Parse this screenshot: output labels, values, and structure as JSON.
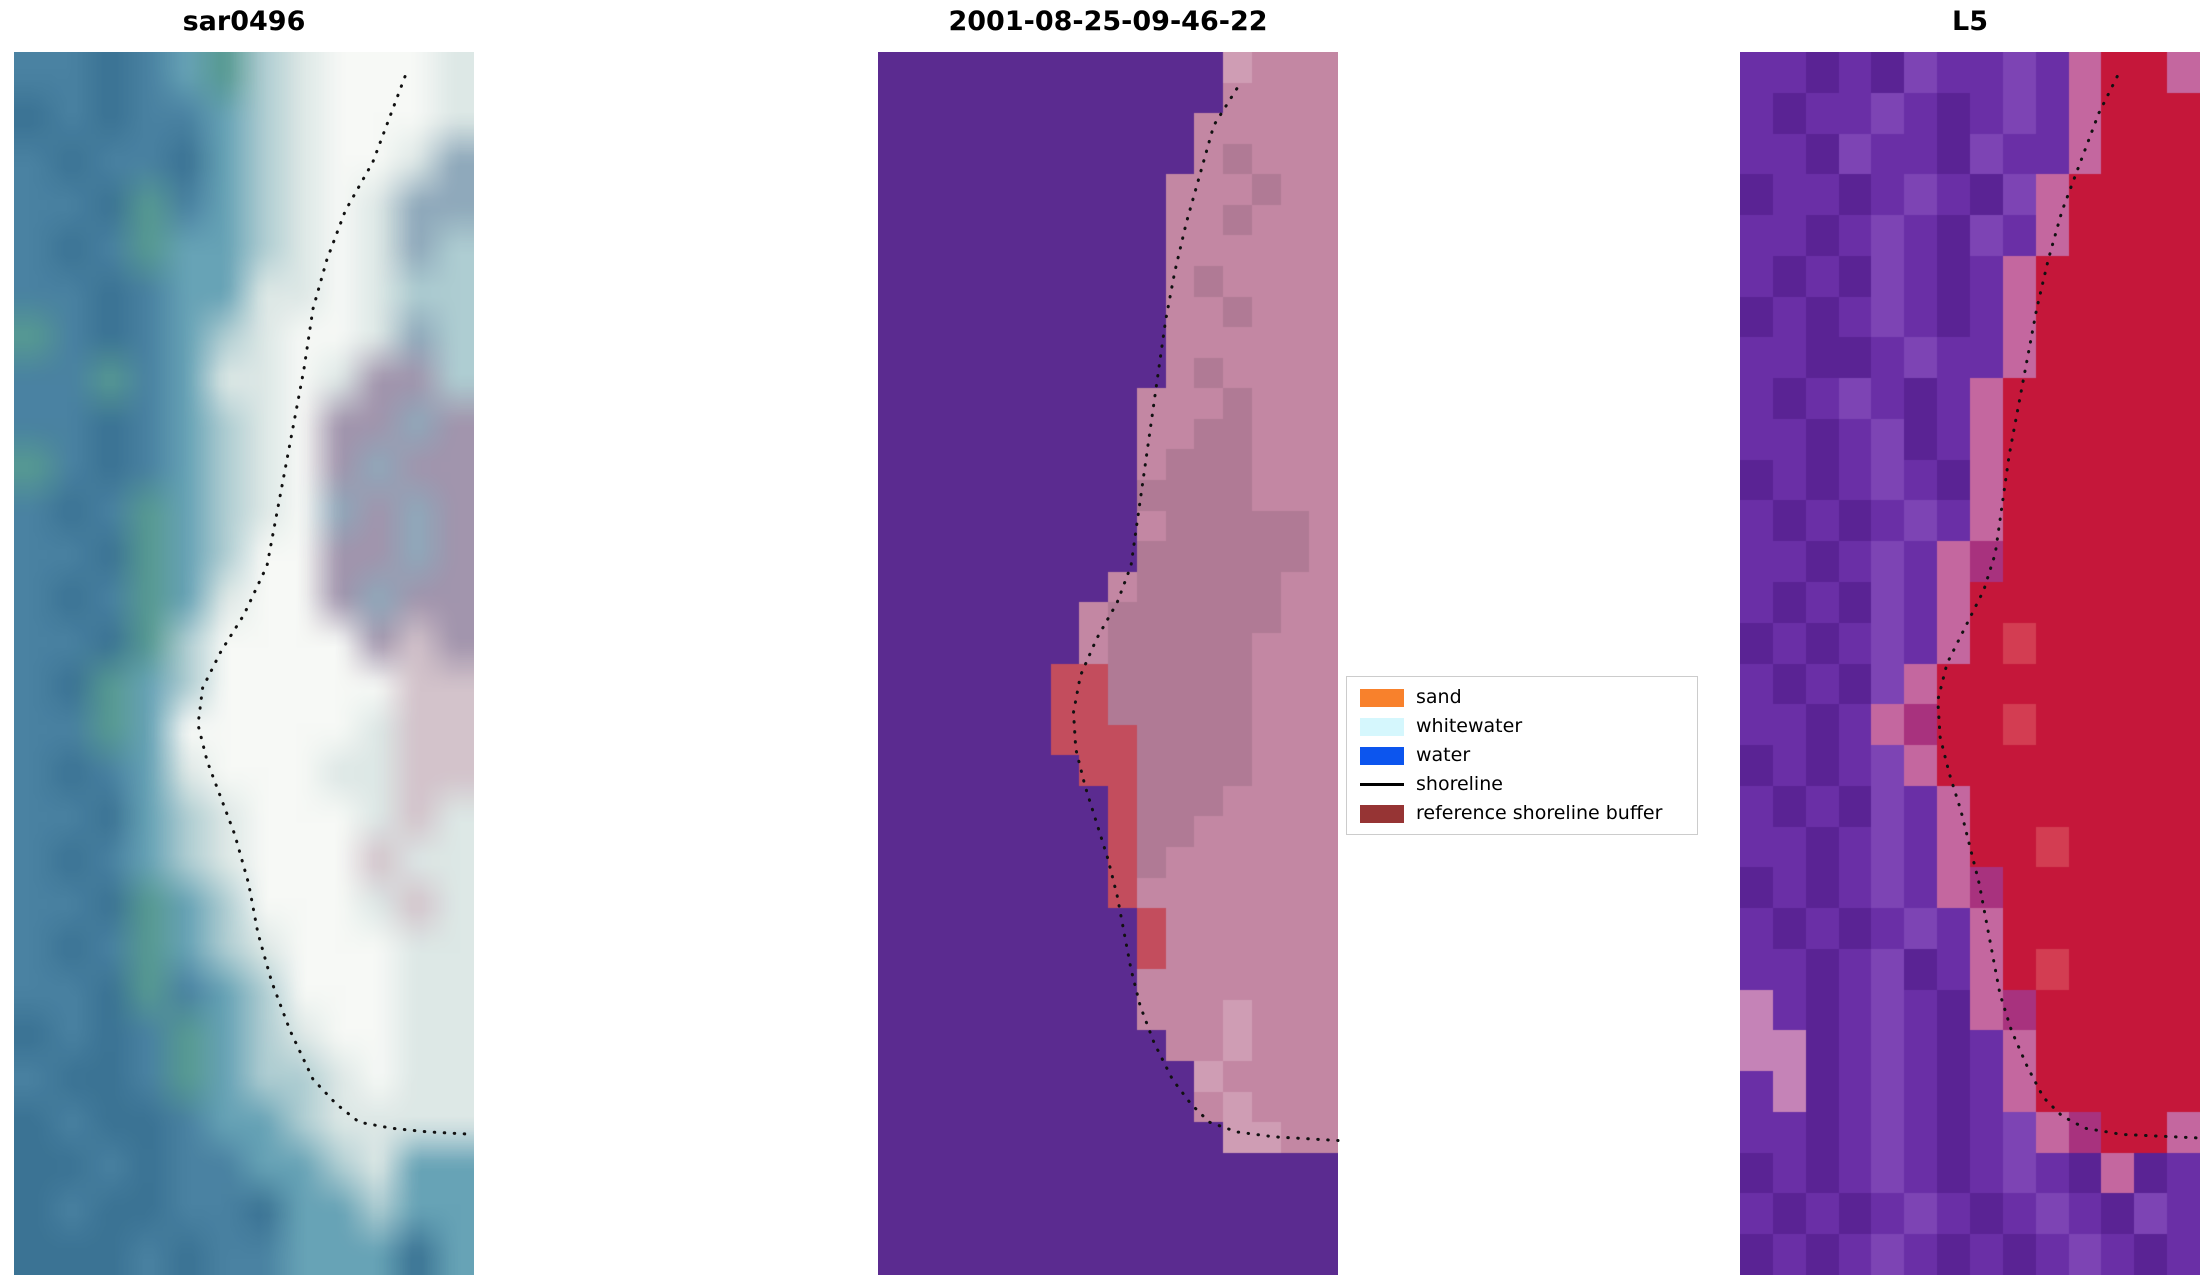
{
  "figure": {
    "background": "#ffffff",
    "shoreline_dot_color": "#111111"
  },
  "panels": [
    {
      "id": "sar",
      "title": "sar0496",
      "render": "smooth",
      "palette": {
        "a": "#4a82a2",
        "b": "#3b7394",
        "c": "#67a3b6",
        "g": "#579a92",
        "v": "#aecdd2",
        "w": "#dde8e6",
        "W": "#f7f9f6",
        "s": "#8fa9bb",
        "m": "#a295ad",
        "r": "#d3c3cb"
      },
      "grid": [
        "aabacgvwWWWw",
        "babaacvwWWWw",
        "abaabcvwWWws",
        "aabgacvwWwss",
        "abagccvwWwsv",
        "aabaccwwWwvv",
        "gabacvwWWwsv",
        "aagacwwWwmmv",
        "aabacvwWmmsm",
        "gabacvwWmsmm",
        "abagcvwWsmsm",
        "aabgcvWWmmsm",
        "abagcwWWmsmm",
        "aabgvWWWWmrm",
        "abgcvWWWWWrr",
        "aagcWWWWWwrr",
        "abacwWWWwwrr",
        "aabcvwWWWwrw",
        "abacvwWWWrww",
        "aabgcvWWWwrw",
        "abagcvwWWWww",
        "aabgacvWWWww",
        "babagcvwWWww",
        "abbagcvvwWww",
        "babbaccvwwww",
        "bbabaaccvwcc",
        "babbaabccvcc",
        "bbbabaacccbc"
      ],
      "shoreline": [
        [
          0.85,
          0.02
        ],
        [
          0.82,
          0.05
        ],
        [
          0.78,
          0.09
        ],
        [
          0.72,
          0.13
        ],
        [
          0.68,
          0.17
        ],
        [
          0.65,
          0.21
        ],
        [
          0.63,
          0.26
        ],
        [
          0.61,
          0.3
        ],
        [
          0.59,
          0.34
        ],
        [
          0.57,
          0.38
        ],
        [
          0.55,
          0.42
        ],
        [
          0.5,
          0.46
        ],
        [
          0.45,
          0.49
        ],
        [
          0.41,
          0.52
        ],
        [
          0.4,
          0.55
        ],
        [
          0.42,
          0.58
        ],
        [
          0.45,
          0.61
        ],
        [
          0.48,
          0.64
        ],
        [
          0.51,
          0.68
        ],
        [
          0.53,
          0.72
        ],
        [
          0.56,
          0.76
        ],
        [
          0.6,
          0.8
        ],
        [
          0.65,
          0.84
        ],
        [
          0.7,
          0.86
        ],
        [
          0.75,
          0.875
        ],
        [
          0.82,
          0.88
        ],
        [
          0.9,
          0.883
        ],
        [
          1.0,
          0.885
        ]
      ]
    },
    {
      "id": "classified",
      "title": "2001-08-25-09-46-22",
      "render": "pixel",
      "palette": {
        "P": "#5b2b90",
        "p": "#c387a3",
        "d": "#b07a95",
        "l": "#cf9db4",
        "R": "#c34d5d"
      },
      "grid": [
        "PPPPPPPPPPPPlppp",
        "PPPPPPPPPPPPpppp",
        "PPPPPPPPPPPppppp",
        "PPPPPPPPPPPpdppp",
        "PPPPPPPPPPpppdpp",
        "PPPPPPPPPPppdppp",
        "PPPPPPPPPPpppppp",
        "PPPPPPPPPPpdpppp",
        "PPPPPPPPPPppdppp",
        "PPPPPPPPPPpppppp",
        "PPPPPPPPPPpdpppp",
        "PPPPPPPPPpppdppp",
        "PPPPPPPPPppddppp",
        "PPPPPPPPPpdddppp",
        "PPPPPPPPPddddppp",
        "PPPPPPPPPpdddddp",
        "PPPPPPPPPddddddp",
        "PPPPPPPPpdddddpp",
        "PPPPPPPpddddddpp",
        "PPPPPPPpdddddppp",
        "PPPPPPRRdddddppp",
        "PPPPPPRRdddddppp",
        "PPPPPPRRRddddppp",
        "PPPPPPPRRddddppp",
        "PPPPPPPPRdddpppp",
        "PPPPPPPPRddppppp",
        "PPPPPPPPRdpppppp",
        "PPPPPPPPRppppppp",
        "PPPPPPPPPRpppppp",
        "PPPPPPPPPRpppppp",
        "PPPPPPPPPppppppp",
        "PPPPPPPPPppplppp",
        "PPPPPPPPPPpplppp",
        "PPPPPPPPPPPlpppp",
        "PPPPPPPPPPPplppp",
        "PPPPPPPPPPPPllpp",
        "PPPPPPPPPPPPPPPP",
        "PPPPPPPPPPPPPPPP",
        "PPPPPPPPPPPPPPPP",
        "PPPPPPPPPPPPPPPP"
      ],
      "shoreline": [
        [
          0.78,
          0.03
        ],
        [
          0.73,
          0.06
        ],
        [
          0.7,
          0.1
        ],
        [
          0.67,
          0.14
        ],
        [
          0.645,
          0.18
        ],
        [
          0.625,
          0.22
        ],
        [
          0.61,
          0.26
        ],
        [
          0.595,
          0.3
        ],
        [
          0.58,
          0.34
        ],
        [
          0.565,
          0.38
        ],
        [
          0.55,
          0.42
        ],
        [
          0.52,
          0.45
        ],
        [
          0.475,
          0.48
        ],
        [
          0.44,
          0.51
        ],
        [
          0.425,
          0.54
        ],
        [
          0.43,
          0.57
        ],
        [
          0.45,
          0.6
        ],
        [
          0.475,
          0.63
        ],
        [
          0.5,
          0.66
        ],
        [
          0.52,
          0.69
        ],
        [
          0.535,
          0.72
        ],
        [
          0.55,
          0.75
        ],
        [
          0.57,
          0.78
        ],
        [
          0.6,
          0.81
        ],
        [
          0.64,
          0.84
        ],
        [
          0.68,
          0.86
        ],
        [
          0.72,
          0.875
        ],
        [
          0.78,
          0.883
        ],
        [
          0.86,
          0.887
        ],
        [
          1.0,
          0.89
        ]
      ]
    },
    {
      "id": "l5",
      "title": "L5",
      "render": "pixel",
      "palette": {
        "A": "#6a2fa6",
        "B": "#5a2394",
        "C": "#7d44b4",
        "R": "#c5173a",
        "q": "#d33d52",
        "m": "#a8327e",
        "k": "#c4679f",
        "L": "#c583b7"
      },
      "grid": [
        "AABABCAACAkRRk",
        "ABAACABACAkRRR",
        "AABCAABCAAkRRR",
        "BAABACABCkRRRR",
        "AABACABCAkRRRR",
        "ABABCABAkRRRRR",
        "BABACABAkRRRRR",
        "AABBACAAkRRRRR",
        "ABACABAkRRRRRR",
        "AABACBAkRRRRRR",
        "BABACABkRRRRRR",
        "ABABACAkRRRRRR",
        "AABACAkmRRRRRR",
        "ABABCAkRRRRRRR",
        "BABACAkRqRRRRR",
        "ABABCkRRRRRRRR",
        "AABAkmRRqRRRRR",
        "BABACkRRRRRRRR",
        "ABABCAkRRRRRRR",
        "AABACAkRRqRRRR",
        "BABACAkmRRRRRR",
        "ABABACAkRRRRRR",
        "AABACBAkRqRRRR",
        "LABACABkmRRRRR",
        "LLBACABAkRRRRR",
        "ALBACABAkRRRRR",
        "AABACABACkmRRk",
        "BABACABACABkBA",
        "ABABACABACABCA",
        "BABACABABACABA"
      ],
      "shoreline": [
        [
          0.82,
          0.02
        ],
        [
          0.78,
          0.05
        ],
        [
          0.74,
          0.09
        ],
        [
          0.7,
          0.13
        ],
        [
          0.67,
          0.17
        ],
        [
          0.645,
          0.21
        ],
        [
          0.625,
          0.25
        ],
        [
          0.605,
          0.29
        ],
        [
          0.585,
          0.33
        ],
        [
          0.57,
          0.37
        ],
        [
          0.555,
          0.41
        ],
        [
          0.53,
          0.44
        ],
        [
          0.49,
          0.47
        ],
        [
          0.45,
          0.5
        ],
        [
          0.43,
          0.53
        ],
        [
          0.435,
          0.56
        ],
        [
          0.455,
          0.59
        ],
        [
          0.48,
          0.62
        ],
        [
          0.5,
          0.65
        ],
        [
          0.52,
          0.68
        ],
        [
          0.535,
          0.71
        ],
        [
          0.55,
          0.74
        ],
        [
          0.565,
          0.77
        ],
        [
          0.59,
          0.8
        ],
        [
          0.625,
          0.83
        ],
        [
          0.66,
          0.855
        ],
        [
          0.7,
          0.87
        ],
        [
          0.75,
          0.88
        ],
        [
          0.83,
          0.885
        ],
        [
          1.0,
          0.888
        ]
      ]
    }
  ],
  "legend": {
    "items": [
      {
        "label": "sand",
        "type": "patch",
        "color": "#f8812c"
      },
      {
        "label": "whitewater",
        "type": "patch",
        "color": "#d5f7fd"
      },
      {
        "label": "water",
        "type": "patch",
        "color": "#0c55ee"
      },
      {
        "label": "shoreline",
        "type": "line",
        "color": "#000000"
      },
      {
        "label": "reference shoreline buffer",
        "type": "patch",
        "color": "#963434"
      }
    ]
  },
  "chart_data": {
    "type": "heatmap",
    "layout": "three raster image panels side by side, legend box between middle and right panel",
    "panels": [
      {
        "title": "sar0496",
        "content": "blue-teal SAR raster with bright white coastal band and black dotted reference shoreline curving from top-right to bottom-right"
      },
      {
        "title": "2001-08-25-09-46-22",
        "content": "classified raster: purple water on left, pink land on right, red reference-shoreline-buffer cells along the mid boundary, black dotted shoreline"
      },
      {
        "title": "L5",
        "content": "purple Landsat-5 raster with large crimson land mass on right, pink transition edge, small pink patch at lower-left, black dotted shoreline"
      }
    ],
    "legend_entries": [
      "sand",
      "whitewater",
      "water",
      "shoreline",
      "reference shoreline buffer"
    ]
  }
}
